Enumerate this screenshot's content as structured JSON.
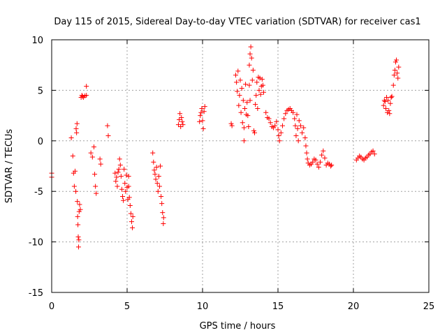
{
  "chart_data": {
    "type": "scatter",
    "title": "Day 115 of 2015, Sidereal Day-to-day VTEC variation (SDTVAR) for receiver cas1",
    "xlabel": "GPS time / hours",
    "ylabel": "SDTVAR / TECUs",
    "xlim": [
      0,
      25
    ],
    "ylim": [
      -15,
      10
    ],
    "xticks": [
      0,
      5,
      10,
      15,
      20,
      25
    ],
    "yticks": [
      -15,
      -10,
      -5,
      0,
      5,
      10
    ],
    "grid": true,
    "marker": "+",
    "colors": {
      "series": "#ff0000",
      "grid": "#a0a0a0",
      "axis": "#000000"
    },
    "segments": [
      [
        [
          0.0,
          -3.2
        ],
        [
          0.0,
          -3.6
        ]
      ],
      [
        [
          1.3,
          0.3
        ],
        [
          1.4,
          -1.5
        ],
        [
          1.45,
          -3.2
        ],
        [
          1.5,
          -4.5
        ],
        [
          1.55,
          -3.0
        ],
        [
          1.6,
          -5.0
        ],
        [
          1.62,
          1.2
        ],
        [
          1.65,
          0.8
        ],
        [
          1.68,
          1.7
        ],
        [
          1.7,
          -6.0
        ],
        [
          1.72,
          -7.5
        ],
        [
          1.74,
          -8.3
        ],
        [
          1.76,
          -9.5
        ],
        [
          1.78,
          -10.5
        ],
        [
          1.8,
          -9.8
        ],
        [
          1.82,
          -7.0
        ],
        [
          1.85,
          -6.3
        ],
        [
          1.9,
          -6.8
        ]
      ],
      [
        [
          1.95,
          4.3
        ],
        [
          2.0,
          4.5
        ],
        [
          2.05,
          4.4
        ],
        [
          2.1,
          4.3
        ],
        [
          2.2,
          4.45
        ],
        [
          2.3,
          4.5
        ],
        [
          2.3,
          5.4
        ]
      ],
      [
        [
          2.6,
          -1.2
        ],
        [
          2.7,
          -1.6
        ],
        [
          2.8,
          -0.6
        ],
        [
          2.85,
          -3.3
        ],
        [
          2.9,
          -4.5
        ],
        [
          2.95,
          -5.2
        ]
      ],
      [
        [
          3.2,
          -1.8
        ],
        [
          3.25,
          -2.3
        ]
      ],
      [
        [
          3.7,
          1.5
        ],
        [
          3.75,
          0.5
        ]
      ],
      [
        [
          4.2,
          -3.2
        ],
        [
          4.25,
          -4.0
        ],
        [
          4.3,
          -3.6
        ],
        [
          4.35,
          -4.5
        ],
        [
          4.4,
          -3.1
        ],
        [
          4.45,
          -2.8
        ],
        [
          4.5,
          -1.8
        ],
        [
          4.55,
          -2.4
        ],
        [
          4.6,
          -3.5
        ],
        [
          4.65,
          -4.8
        ],
        [
          4.7,
          -5.5
        ],
        [
          4.75,
          -5.9
        ],
        [
          4.8,
          -2.8
        ],
        [
          4.85,
          -4.2
        ],
        [
          4.9,
          -5.0
        ],
        [
          4.95,
          -3.4
        ],
        [
          5.0,
          -4.6
        ],
        [
          5.05,
          -5.8
        ],
        [
          5.1,
          -3.5
        ]
      ],
      [
        [
          5.1,
          -4.5
        ],
        [
          5.15,
          -5.6
        ],
        [
          5.2,
          -6.4
        ],
        [
          5.25,
          -7.2
        ],
        [
          5.3,
          -8.0
        ],
        [
          5.35,
          -8.6
        ],
        [
          5.38,
          -7.5
        ]
      ],
      [
        [
          6.7,
          -1.2
        ],
        [
          6.75,
          -2.1
        ],
        [
          6.8,
          -2.9
        ],
        [
          6.85,
          -3.3
        ],
        [
          6.9,
          -3.8
        ],
        [
          6.95,
          -2.6
        ],
        [
          7.0,
          -4.2
        ],
        [
          7.05,
          -5.0
        ],
        [
          7.1,
          -3.5
        ],
        [
          7.15,
          -4.5
        ],
        [
          7.2,
          -2.5
        ],
        [
          7.25,
          -5.5
        ]
      ],
      [
        [
          7.3,
          -6.2
        ],
        [
          7.35,
          -7.1
        ],
        [
          7.4,
          -8.2
        ],
        [
          7.42,
          -7.6
        ]
      ],
      [
        [
          8.4,
          1.6
        ],
        [
          8.45,
          2.1
        ],
        [
          8.5,
          2.7
        ],
        [
          8.55,
          1.4
        ],
        [
          8.6,
          2.3
        ],
        [
          8.65,
          1.9
        ],
        [
          8.7,
          1.6
        ]
      ],
      [
        [
          9.8,
          1.9
        ],
        [
          9.85,
          2.5
        ],
        [
          9.9,
          2.8
        ],
        [
          9.95,
          3.2
        ],
        [
          10.0,
          2.0
        ],
        [
          10.05,
          1.2
        ],
        [
          10.1,
          2.9
        ],
        [
          10.15,
          3.4
        ]
      ],
      [
        [
          11.9,
          1.7
        ],
        [
          11.95,
          1.5
        ]
      ],
      [
        [
          12.2,
          6.5
        ],
        [
          12.25,
          5.8
        ],
        [
          12.3,
          4.9
        ],
        [
          12.35,
          6.9
        ],
        [
          12.4,
          3.5
        ],
        [
          12.45,
          4.5
        ],
        [
          12.5,
          6.0
        ],
        [
          12.55,
          2.8
        ],
        [
          12.6,
          5.2
        ],
        [
          12.65,
          1.8
        ],
        [
          12.7,
          4.0
        ],
        [
          12.75,
          1.3
        ],
        [
          12.8,
          3.2
        ],
        [
          12.85,
          5.6
        ],
        [
          12.9,
          2.6
        ],
        [
          12.95,
          3.8
        ],
        [
          13.0,
          2.5
        ],
        [
          13.05,
          1.4
        ],
        [
          13.1,
          5.5
        ],
        [
          13.15,
          4.0
        ],
        [
          12.75,
          0.0
        ]
      ],
      [
        [
          13.1,
          7.5
        ],
        [
          13.15,
          8.6
        ],
        [
          13.2,
          9.3
        ],
        [
          13.25,
          8.2
        ],
        [
          13.3,
          6.0
        ],
        [
          13.35,
          7.0
        ]
      ],
      [
        [
          13.4,
          1.0
        ],
        [
          13.45,
          0.8
        ]
      ],
      [
        [
          13.5,
          3.6
        ],
        [
          13.55,
          4.5
        ],
        [
          13.6,
          5.8
        ],
        [
          13.65,
          3.2
        ],
        [
          13.7,
          6.3
        ],
        [
          13.75,
          5.0
        ],
        [
          13.8,
          6.2
        ],
        [
          13.85,
          4.6
        ],
        [
          13.9,
          5.4
        ],
        [
          13.95,
          6.1
        ],
        [
          14.0,
          5.5
        ],
        [
          14.05,
          4.8
        ]
      ],
      [
        [
          14.2,
          2.8
        ],
        [
          14.3,
          2.3
        ],
        [
          14.4,
          2.2
        ],
        [
          14.5,
          1.8
        ],
        [
          14.6,
          1.4
        ],
        [
          14.7,
          1.3
        ],
        [
          14.8,
          1.5
        ],
        [
          14.9,
          1.9
        ],
        [
          15.0,
          1.1
        ],
        [
          15.05,
          0.5
        ],
        [
          15.1,
          0.0
        ],
        [
          15.2,
          0.8
        ],
        [
          15.3,
          1.5
        ],
        [
          15.4,
          2.2
        ],
        [
          15.5,
          2.7
        ],
        [
          15.6,
          3.0
        ],
        [
          15.7,
          3.1
        ],
        [
          15.8,
          3.2
        ],
        [
          15.9,
          3.0
        ],
        [
          16.0,
          2.8
        ],
        [
          16.1,
          2.2
        ],
        [
          16.15,
          1.5
        ],
        [
          16.2,
          0.5
        ],
        [
          16.25,
          2.6
        ],
        [
          16.3,
          1.2
        ],
        [
          16.35,
          0.0
        ],
        [
          16.4,
          2.0
        ],
        [
          16.5,
          1.5
        ],
        [
          16.6,
          0.8
        ],
        [
          16.7,
          1.3
        ],
        [
          16.8,
          0.3
        ],
        [
          16.85,
          -0.5
        ],
        [
          16.9,
          -1.2
        ],
        [
          16.95,
          -1.8
        ],
        [
          17.0,
          -2.2
        ],
        [
          17.1,
          -2.4
        ],
        [
          17.2,
          -2.3
        ],
        [
          17.3,
          -2.1
        ],
        [
          17.4,
          -1.8
        ],
        [
          17.5,
          -1.9
        ],
        [
          17.6,
          -2.3
        ],
        [
          17.7,
          -2.6
        ],
        [
          17.8,
          -2.1
        ],
        [
          17.9,
          -1.4
        ],
        [
          18.0,
          -1.0
        ],
        [
          18.1,
          -1.7
        ],
        [
          18.2,
          -2.4
        ],
        [
          18.3,
          -2.2
        ],
        [
          18.4,
          -2.3
        ],
        [
          18.5,
          -2.5
        ],
        [
          18.55,
          -2.4
        ]
      ],
      [
        [
          20.2,
          -1.9
        ],
        [
          20.3,
          -1.7
        ],
        [
          20.4,
          -1.5
        ],
        [
          20.5,
          -1.6
        ],
        [
          20.6,
          -1.8
        ],
        [
          20.7,
          -1.9
        ],
        [
          20.8,
          -1.7
        ],
        [
          20.9,
          -1.6
        ],
        [
          21.0,
          -1.4
        ],
        [
          21.1,
          -1.3
        ],
        [
          21.2,
          -1.1
        ],
        [
          21.3,
          -1.0
        ],
        [
          21.4,
          -1.3
        ]
      ],
      [
        [
          22.0,
          3.5
        ],
        [
          22.05,
          4.0
        ],
        [
          22.1,
          3.9
        ],
        [
          22.15,
          3.2
        ],
        [
          22.2,
          4.3
        ],
        [
          22.25,
          2.8
        ],
        [
          22.3,
          4.0
        ],
        [
          22.35,
          3.0
        ],
        [
          22.4,
          2.7
        ],
        [
          22.45,
          3.7
        ],
        [
          22.5,
          4.3
        ],
        [
          22.55,
          4.4
        ]
      ],
      [
        [
          22.65,
          5.5
        ],
        [
          22.7,
          6.5
        ],
        [
          22.75,
          7.0
        ],
        [
          22.8,
          7.8
        ],
        [
          22.85,
          8.0
        ],
        [
          22.9,
          6.7
        ],
        [
          22.95,
          6.2
        ],
        [
          23.0,
          7.3
        ]
      ]
    ]
  }
}
